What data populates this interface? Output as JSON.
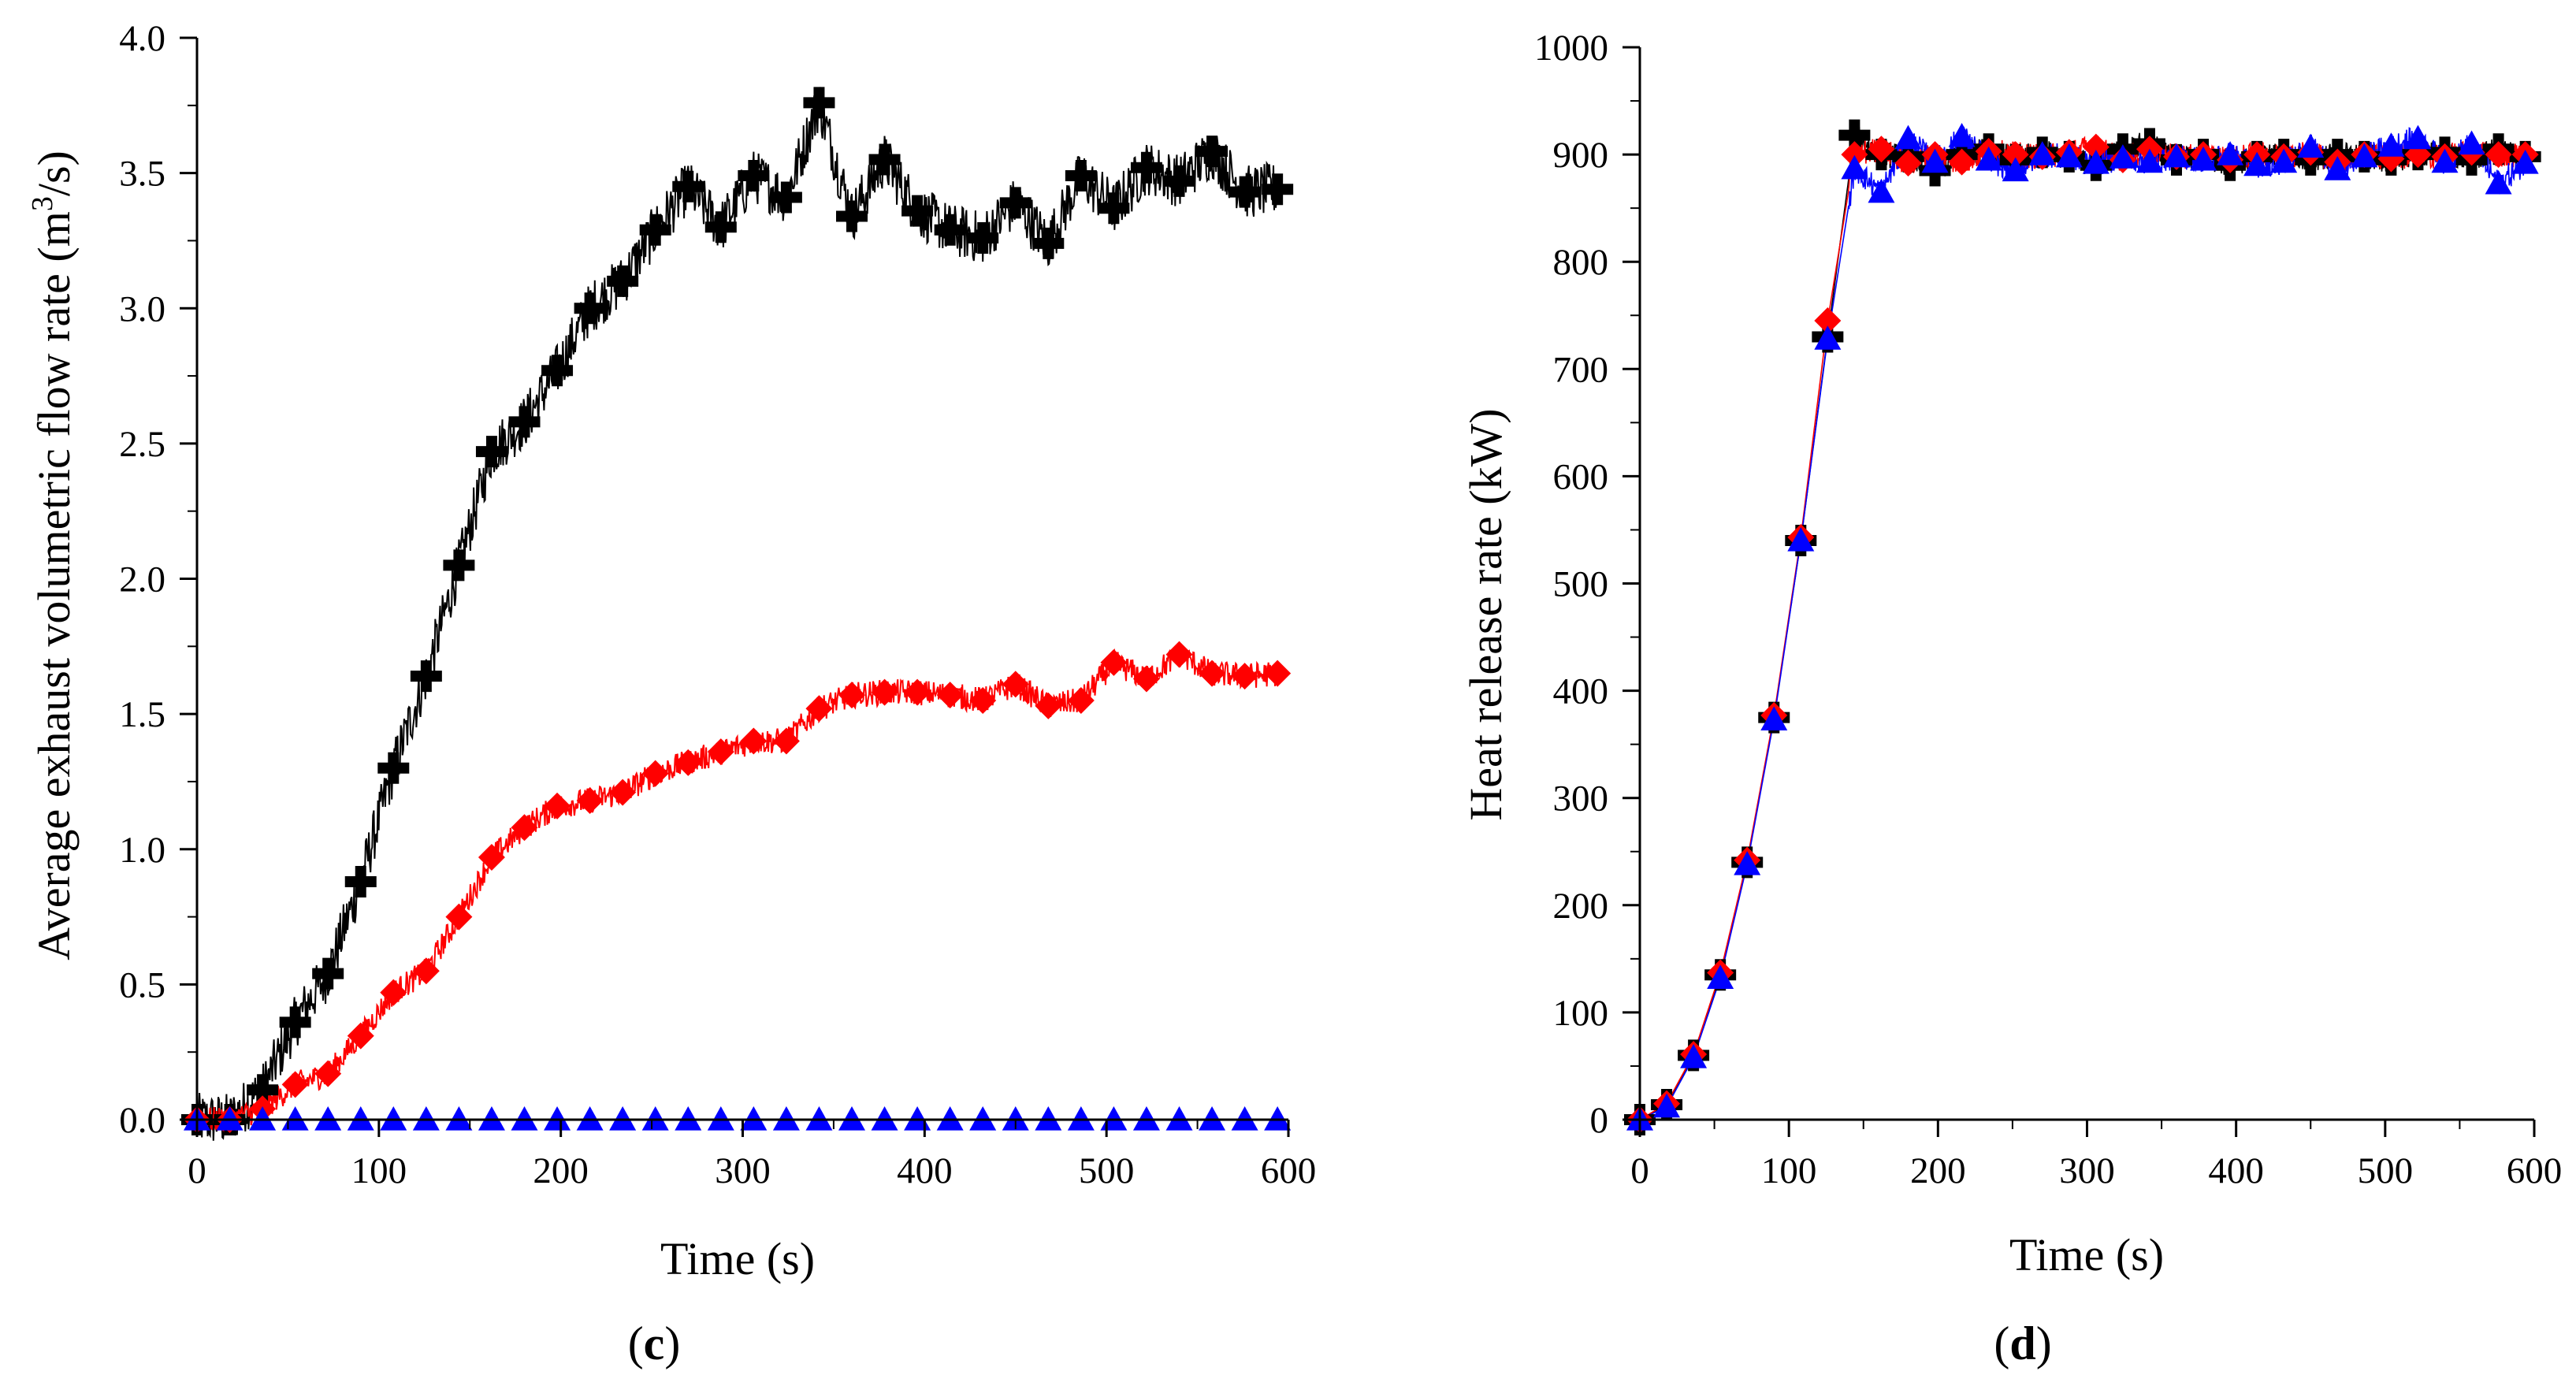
{
  "chart_data": [
    {
      "type": "line",
      "panel_label": "c",
      "xlabel": "Time (s)",
      "ylabel_main": "Average exhaust volumetric flow rate (m",
      "ylabel_sup": "3",
      "ylabel_tail": "/s)",
      "xlim": [
        0,
        600
      ],
      "ylim": [
        0,
        4
      ],
      "xticks": [
        "0",
        "100",
        "200",
        "300",
        "400",
        "500",
        "600"
      ],
      "yticks": [
        "0.0",
        "0.5",
        "1.0",
        "1.5",
        "2.0",
        "2.5",
        "3.0",
        "3.5",
        "4.0"
      ],
      "series": [
        {
          "name": "black-plus",
          "color": "#000000",
          "marker": "plus",
          "x": [
            0,
            18,
            36,
            54,
            72,
            90,
            108,
            126,
            144,
            162,
            180,
            198,
            216,
            234,
            252,
            270,
            288,
            306,
            324,
            342,
            360,
            378,
            396,
            414,
            432,
            450,
            468,
            486,
            504,
            522,
            540,
            558,
            576,
            594
          ],
          "values": [
            0.0,
            0.0,
            0.11,
            0.36,
            0.54,
            0.88,
            1.3,
            1.64,
            2.05,
            2.47,
            2.58,
            2.77,
            3.0,
            3.1,
            3.29,
            3.45,
            3.3,
            3.49,
            3.41,
            3.76,
            3.34,
            3.55,
            3.36,
            3.29,
            3.26,
            3.39,
            3.24,
            3.49,
            3.37,
            3.52,
            3.47,
            3.58,
            3.43,
            3.44
          ]
        },
        {
          "name": "red-diamond",
          "color": "#ff0000",
          "marker": "diamond",
          "x": [
            0,
            18,
            36,
            54,
            72,
            90,
            108,
            126,
            144,
            162,
            180,
            198,
            216,
            234,
            252,
            270,
            288,
            306,
            324,
            342,
            360,
            378,
            396,
            414,
            432,
            450,
            468,
            486,
            504,
            522,
            540,
            558,
            576,
            594
          ],
          "values": [
            0.0,
            0.0,
            0.04,
            0.13,
            0.17,
            0.31,
            0.47,
            0.55,
            0.75,
            0.97,
            1.08,
            1.16,
            1.18,
            1.21,
            1.28,
            1.32,
            1.36,
            1.4,
            1.4,
            1.52,
            1.57,
            1.58,
            1.58,
            1.57,
            1.55,
            1.61,
            1.53,
            1.55,
            1.69,
            1.63,
            1.72,
            1.65,
            1.64,
            1.65
          ]
        },
        {
          "name": "blue-triangle",
          "color": "#0000ff",
          "marker": "triangle",
          "x": [
            0,
            18,
            36,
            54,
            72,
            90,
            108,
            126,
            144,
            162,
            180,
            198,
            216,
            234,
            252,
            270,
            288,
            306,
            324,
            342,
            360,
            378,
            396,
            414,
            432,
            450,
            468,
            486,
            504,
            522,
            540,
            558,
            576,
            594
          ],
          "values": [
            0.0,
            0.0,
            0.0,
            0.0,
            0.0,
            0.0,
            0.0,
            0.0,
            0.0,
            0.0,
            0.0,
            0.0,
            0.0,
            0.0,
            0.0,
            0.0,
            0.0,
            0.0,
            0.0,
            0.0,
            0.0,
            0.0,
            0.0,
            0.0,
            0.0,
            0.0,
            0.0,
            0.0,
            0.0,
            0.0,
            0.0,
            0.0,
            0.0,
            0.0
          ]
        }
      ]
    },
    {
      "type": "line",
      "panel_label": "d",
      "xlabel": "Time (s)",
      "ylabel": "Heat release rate (kW)",
      "xlim": [
        0,
        600
      ],
      "ylim": [
        0,
        1000
      ],
      "xticks": [
        "0",
        "100",
        "200",
        "300",
        "400",
        "500",
        "600"
      ],
      "yticks": [
        "0",
        "100",
        "200",
        "300",
        "400",
        "500",
        "600",
        "700",
        "800",
        "900",
        "1000"
      ],
      "series": [
        {
          "name": "black-plus",
          "color": "#000000",
          "marker": "plus",
          "x": [
            0,
            18,
            36,
            54,
            72,
            90,
            108,
            126,
            144,
            162,
            180,
            198,
            216,
            234,
            252,
            270,
            288,
            306,
            324,
            342,
            360,
            378,
            396,
            414,
            432,
            450,
            468,
            486,
            504,
            522,
            540,
            558,
            576,
            594
          ],
          "values": [
            0,
            14,
            60,
            135,
            240,
            375,
            540,
            730,
            918,
            900,
            898,
            885,
            900,
            905,
            895,
            902,
            898,
            890,
            905,
            910,
            895,
            900,
            890,
            898,
            900,
            895,
            900,
            898,
            895,
            900,
            902,
            895,
            905,
            898
          ]
        },
        {
          "name": "red-diamond",
          "color": "#ff0000",
          "marker": "diamond",
          "x": [
            0,
            18,
            36,
            54,
            72,
            90,
            108,
            126,
            144,
            162,
            180,
            198,
            216,
            234,
            252,
            270,
            288,
            306,
            324,
            342,
            360,
            378,
            396,
            414,
            432,
            450,
            468,
            486,
            504,
            522,
            540,
            558,
            576,
            594
          ],
          "values": [
            0,
            15,
            61,
            137,
            242,
            377,
            543,
            745,
            900,
            905,
            892,
            900,
            893,
            903,
            900,
            898,
            902,
            907,
            895,
            905,
            898,
            900,
            895,
            900,
            898,
            902,
            893,
            900,
            896,
            900,
            898,
            902,
            900,
            900
          ]
        },
        {
          "name": "blue-triangle",
          "color": "#0000ff",
          "marker": "triangle",
          "x": [
            0,
            18,
            36,
            54,
            72,
            90,
            108,
            126,
            144,
            162,
            180,
            198,
            216,
            234,
            252,
            270,
            288,
            306,
            324,
            342,
            360,
            378,
            396,
            414,
            432,
            450,
            468,
            486,
            504,
            522,
            540,
            558,
            576,
            594
          ],
          "values": [
            0,
            12,
            58,
            132,
            238,
            373,
            540,
            728,
            887,
            865,
            915,
            893,
            917,
            895,
            885,
            900,
            898,
            892,
            897,
            893,
            898,
            895,
            900,
            890,
            893,
            907,
            886,
            898,
            908,
            915,
            893,
            910,
            873,
            892
          ]
        }
      ]
    }
  ]
}
